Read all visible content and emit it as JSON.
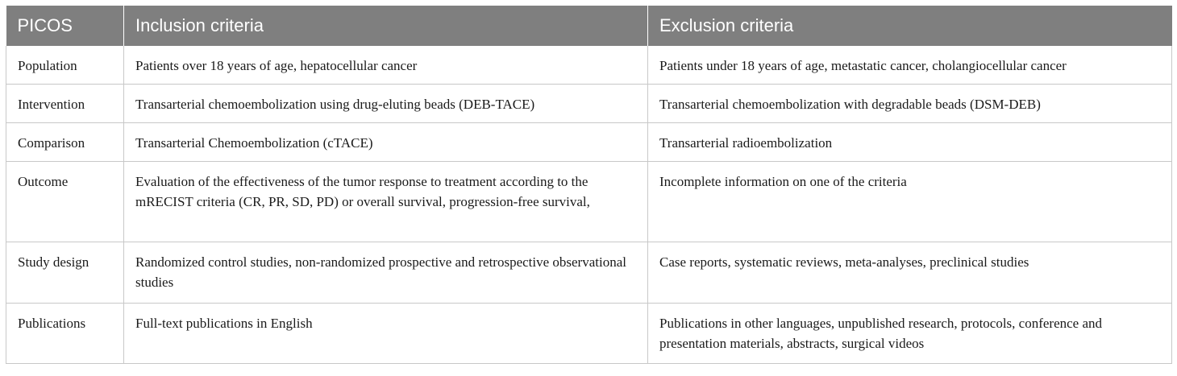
{
  "table": {
    "headers": [
      "PICOS",
      "Inclusion criteria",
      "Exclusion criteria"
    ],
    "rows": [
      {
        "picos": "Population",
        "inclusion": "Patients over 18 years of age, hepatocellular cancer",
        "exclusion": "Patients under 18 years of age, metastatic cancer, cholangiocellular cancer"
      },
      {
        "picos": "Intervention",
        "inclusion": "Transarterial chemoembolization using drug-eluting beads (DEB-TACE)",
        "exclusion": "Transarterial chemoembolization with degradable beads (DSM-DEB)"
      },
      {
        "picos": "Comparison",
        "inclusion": "Transarterial Chemoembolization (cTACE)",
        "exclusion": "Transarterial radioembolization"
      },
      {
        "picos": "Outcome",
        "inclusion": "Evaluation of the effectiveness of the tumor response to treatment according to the mRECIST criteria (CR, PR, SD, PD) or overall survival, progression-free survival,",
        "exclusion": "Incomplete information on one of the criteria"
      },
      {
        "picos": "Study design",
        "inclusion": "Randomized control studies, non-randomized prospective and retrospective observational studies",
        "exclusion": "Case reports, systematic reviews, meta-analyses, preclinical studies"
      },
      {
        "picos": "Publications",
        "inclusion": "Full-text publications in English",
        "exclusion": "Publications in other languages, unpublished research, protocols, conference and presentation materials, abstracts, surgical videos"
      }
    ]
  }
}
